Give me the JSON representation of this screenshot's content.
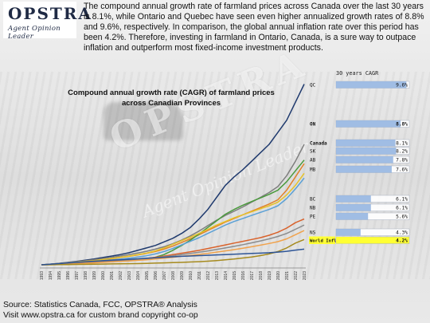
{
  "brand": {
    "logo_text": "OPSTRA",
    "logo_tagline": "Agent Opinion Leader"
  },
  "intro_text": "The compound annual growth rate of farmland prices across Canada over the last 30 years is 8.1%, while Ontario and Quebec have seen even higher annualized growth rates of 8.8% and 9.6%, respectively. In comparison, the global annual inflation rate over this period has been 4.2%. Therefore, investing in farmland in Ontario, Canada, is a sure way to outpace inflation and outperform most fixed-income investment products.",
  "cagr_header": "30 years CAGR",
  "footer": {
    "source": "Source: Statistics Canada, FCC, OPSTRA® Analysis",
    "copyright": "Visit www.opstra.ca for custom brand copyright co-op"
  },
  "chart_data": {
    "type": "line",
    "title_line1": "Compound annual growth rate (CAGR)  of farmland prices",
    "title_line2": "across Canadian Provinces",
    "x": [
      "1993",
      "1994",
      "1995",
      "1996",
      "1997",
      "1998",
      "1999",
      "2000",
      "2001",
      "2002",
      "2003",
      "2004",
      "2005",
      "2006",
      "2007",
      "2008",
      "2009",
      "2010",
      "2011",
      "2012",
      "2013",
      "2014",
      "2015",
      "2016",
      "2017",
      "2018",
      "2019",
      "2020",
      "2021",
      "2022",
      "2023"
    ],
    "ylim": [
      1,
      16.5
    ],
    "grid": false,
    "legend": "right",
    "series": [
      {
        "name": "QC",
        "cagr": "9.6%",
        "bar": 0.96,
        "color": "#1f3a6e",
        "values": [
          1,
          1.05,
          1.12,
          1.2,
          1.28,
          1.38,
          1.48,
          1.6,
          1.72,
          1.85,
          2.0,
          2.2,
          2.4,
          2.6,
          2.9,
          3.2,
          3.6,
          4.1,
          4.8,
          5.6,
          6.6,
          7.6,
          8.3,
          8.9,
          9.6,
          10.3,
          11.0,
          12.0,
          13.0,
          14.5,
          16.0
        ]
      },
      {
        "name": "ON",
        "cagr": "8.8%",
        "bar": 0.88,
        "color": "#7f7f7f",
        "values": [
          1,
          1.05,
          1.11,
          1.18,
          1.25,
          1.33,
          1.42,
          1.52,
          1.62,
          1.73,
          1.85,
          1.98,
          2.12,
          2.3,
          2.5,
          2.75,
          3.05,
          3.4,
          3.8,
          4.25,
          4.7,
          5.1,
          5.45,
          5.8,
          6.2,
          6.6,
          7.0,
          7.5,
          8.4,
          9.6,
          11.0
        ]
      },
      {
        "name": "Canada",
        "cagr": "8.1%",
        "bar": 0.81,
        "color": "#e0822a",
        "values": [
          1,
          1.03,
          1.08,
          1.13,
          1.19,
          1.26,
          1.33,
          1.41,
          1.5,
          1.6,
          1.7,
          1.82,
          1.95,
          2.1,
          2.3,
          2.55,
          2.85,
          3.15,
          3.5,
          3.85,
          4.2,
          4.55,
          4.85,
          5.15,
          5.45,
          5.75,
          6.05,
          6.4,
          7.2,
          8.3,
          9.4
        ]
      },
      {
        "name": "SK",
        "cagr": "8.2%",
        "bar": 0.82,
        "color": "#4a9a3c",
        "values": [
          1,
          1.02,
          1.05,
          1.08,
          1.12,
          1.16,
          1.2,
          1.24,
          1.28,
          1.32,
          1.36,
          1.42,
          1.5,
          1.62,
          1.85,
          2.2,
          2.6,
          3.05,
          3.55,
          4.1,
          4.65,
          5.2,
          5.6,
          5.95,
          6.25,
          6.55,
          6.85,
          7.2,
          7.9,
          8.8,
          9.7
        ]
      },
      {
        "name": "AB",
        "cagr": "7.8%",
        "bar": 0.78,
        "color": "#e6c229",
        "values": [
          1,
          1.04,
          1.09,
          1.15,
          1.21,
          1.28,
          1.35,
          1.43,
          1.52,
          1.62,
          1.72,
          1.84,
          1.97,
          2.15,
          2.4,
          2.7,
          3.0,
          3.3,
          3.6,
          3.95,
          4.3,
          4.6,
          4.9,
          5.15,
          5.4,
          5.65,
          5.9,
          6.2,
          6.8,
          7.6,
          8.6
        ]
      },
      {
        "name": "MB",
        "cagr": "7.6%",
        "bar": 0.76,
        "color": "#5aa0d6",
        "values": [
          1,
          1.03,
          1.07,
          1.12,
          1.17,
          1.22,
          1.28,
          1.34,
          1.4,
          1.47,
          1.55,
          1.64,
          1.75,
          1.9,
          2.1,
          2.35,
          2.65,
          2.95,
          3.25,
          3.6,
          3.95,
          4.3,
          4.6,
          4.85,
          5.1,
          5.35,
          5.6,
          5.9,
          6.5,
          7.3,
          8.2
        ]
      },
      {
        "name": "BC",
        "cagr": "6.1%",
        "bar": 0.61,
        "color": "#d9622b",
        "values": [
          1,
          1.03,
          1.06,
          1.1,
          1.14,
          1.18,
          1.22,
          1.26,
          1.3,
          1.35,
          1.4,
          1.46,
          1.53,
          1.62,
          1.72,
          1.84,
          1.96,
          2.08,
          2.2,
          2.35,
          2.5,
          2.65,
          2.8,
          2.95,
          3.1,
          3.25,
          3.45,
          3.7,
          4.05,
          4.5,
          4.8
        ]
      },
      {
        "name": "NB",
        "cagr": "6.1%",
        "bar": 0.61,
        "color": "#8c8c8c",
        "values": [
          1,
          1.02,
          1.05,
          1.08,
          1.11,
          1.15,
          1.19,
          1.23,
          1.27,
          1.32,
          1.37,
          1.43,
          1.5,
          1.58,
          1.66,
          1.75,
          1.84,
          1.94,
          2.04,
          2.15,
          2.27,
          2.4,
          2.53,
          2.67,
          2.82,
          2.98,
          3.15,
          3.35,
          3.6,
          3.95,
          4.3
        ]
      },
      {
        "name": "PE",
        "cagr": "5.6%",
        "bar": 0.56,
        "color": "#f0a24c",
        "values": [
          1,
          1.02,
          1.04,
          1.07,
          1.1,
          1.13,
          1.16,
          1.2,
          1.24,
          1.28,
          1.32,
          1.37,
          1.42,
          1.48,
          1.55,
          1.62,
          1.7,
          1.78,
          1.86,
          1.95,
          2.05,
          2.15,
          2.26,
          2.38,
          2.5,
          2.63,
          2.77,
          2.92,
          3.15,
          3.5,
          3.85
        ]
      },
      {
        "name": "NS",
        "cagr": "4.3%",
        "bar": 0.43,
        "color": "#a68a1e",
        "values": [
          1,
          1.0,
          1.01,
          1.02,
          1.03,
          1.04,
          1.05,
          1.06,
          1.07,
          1.08,
          1.09,
          1.1,
          1.12,
          1.14,
          1.16,
          1.18,
          1.2,
          1.23,
          1.26,
          1.3,
          1.35,
          1.41,
          1.48,
          1.56,
          1.65,
          1.76,
          1.9,
          2.1,
          2.4,
          2.8,
          3.1
        ]
      },
      {
        "name": "World Inflation%",
        "cagr": "4.2%",
        "bar": 0.42,
        "color": "#2e5597",
        "values": [
          1,
          1.05,
          1.1,
          1.15,
          1.2,
          1.25,
          1.3,
          1.34,
          1.38,
          1.42,
          1.46,
          1.5,
          1.54,
          1.58,
          1.62,
          1.66,
          1.7,
          1.73,
          1.76,
          1.79,
          1.82,
          1.85,
          1.88,
          1.91,
          1.94,
          1.97,
          2.0,
          2.05,
          2.12,
          2.22,
          2.3
        ]
      }
    ]
  }
}
